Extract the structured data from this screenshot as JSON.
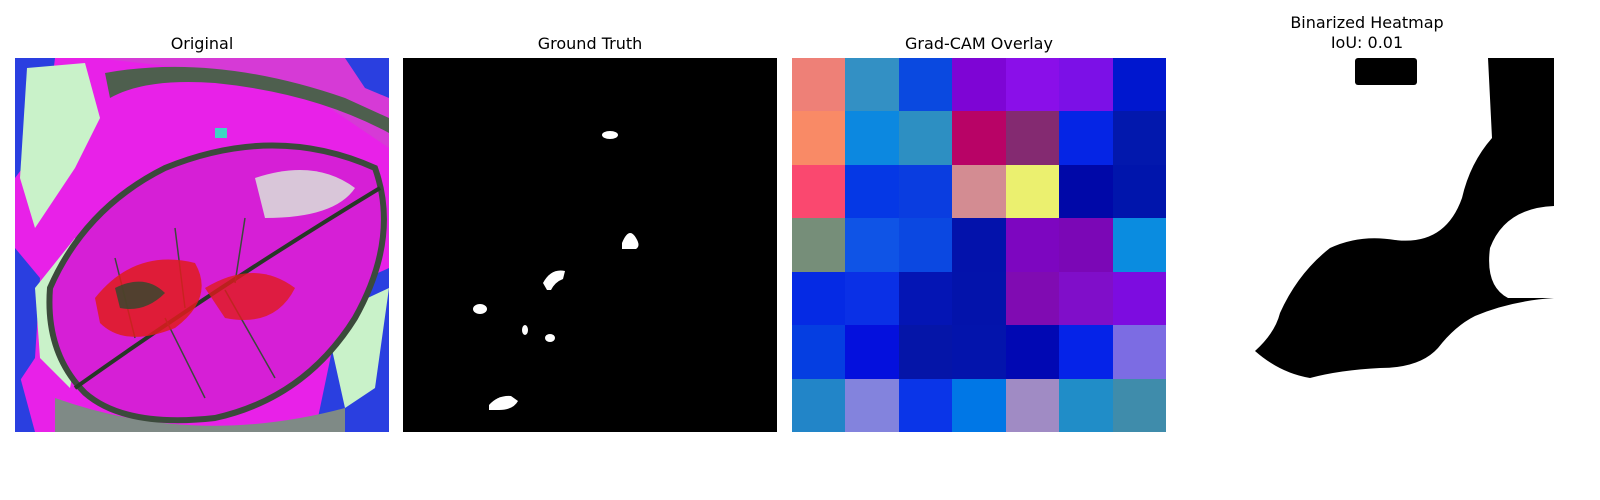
{
  "panels": [
    {
      "id": "original",
      "title": "Original"
    },
    {
      "id": "ground-truth",
      "title": "Ground Truth"
    },
    {
      "id": "gradcam-overlay",
      "title": "Grad-CAM Overlay"
    },
    {
      "id": "binarized-heatmap",
      "title": "Binarized Heatmap\nIoU: 0.01"
    }
  ],
  "gradcam_grid": [
    [
      "#ee8077",
      "#3390c4",
      "#0a49e0",
      "#7e05d5",
      "#8a0fe9",
      "#7c10e7",
      "#0017cf"
    ],
    [
      "#f98a66",
      "#0c88e0",
      "#2d8fc2",
      "#b80366",
      "#842a71",
      "#0525e5",
      "#0218ad"
    ],
    [
      "#fa486f",
      "#0538e5",
      "#0a3de0",
      "#d38c92",
      "#ebf06f",
      "#0008a8",
      "#0015ac"
    ],
    [
      "#768e79",
      "#0f54e6",
      "#0b48e1",
      "#0312ab",
      "#7d06c0",
      "#7b07b6",
      "#0a8ce0"
    ],
    [
      "#052ae4",
      "#0a30e6",
      "#0415b4",
      "#0313ab",
      "#800bb2",
      "#800ec9",
      "#7d0ce0"
    ],
    [
      "#053ee1",
      "#0410dd",
      "#0515a8",
      "#0314ac",
      "#0108b3",
      "#0523e8",
      "#7c6ce3"
    ],
    [
      "#2285c8",
      "#8383dd",
      "#0a35e8",
      "#0077e6",
      "#a08bc4",
      "#208dc8",
      "#3f8cab"
    ]
  ]
}
